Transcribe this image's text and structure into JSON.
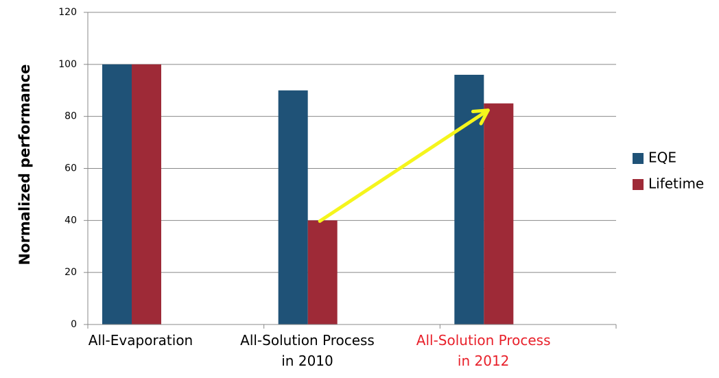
{
  "chart_data": {
    "type": "bar",
    "y_label": "Normalized performance",
    "categories": [
      [
        "All-Evaporation"
      ],
      [
        "All-Solution Process",
        "in 2010"
      ],
      [
        "All-Solution Process",
        "in 2012"
      ]
    ],
    "category_label_colors": [
      "#000000",
      "#000000",
      "#e8202a"
    ],
    "series": [
      {
        "name": "EQE",
        "color": "#1f5277",
        "values": [
          100,
          90,
          96
        ]
      },
      {
        "name": "Lifetime",
        "color": "#9e2a37",
        "values": [
          100,
          40,
          85
        ]
      }
    ],
    "ylim": [
      0,
      120
    ],
    "yticks": [
      0,
      20,
      40,
      60,
      80,
      100,
      120
    ],
    "grid": true,
    "legend": "right"
  }
}
